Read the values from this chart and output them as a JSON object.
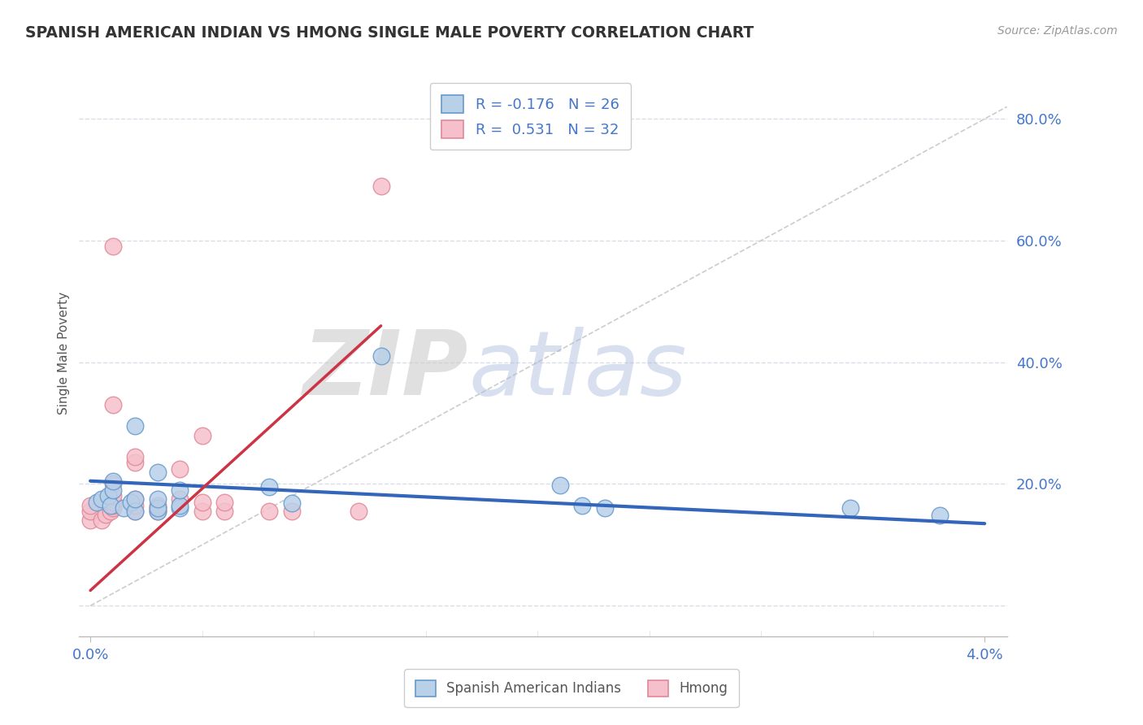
{
  "title": "SPANISH AMERICAN INDIAN VS HMONG SINGLE MALE POVERTY CORRELATION CHART",
  "source": "Source: ZipAtlas.com",
  "ylabel": "Single Male Poverty",
  "xlim": [
    -0.0005,
    0.041
  ],
  "ylim": [
    -0.05,
    0.88
  ],
  "xticks": [
    0.0,
    0.04
  ],
  "xticklabels": [
    "0.0%",
    "4.0%"
  ],
  "ytick_positions": [
    0.0,
    0.2,
    0.4,
    0.6,
    0.8
  ],
  "ytick_labels": [
    "",
    "20.0%",
    "40.0%",
    "60.0%",
    "80.0%"
  ],
  "blue_r": "-0.176",
  "blue_n": "26",
  "pink_r": "0.531",
  "pink_n": "32",
  "blue_color": "#b8d0e8",
  "blue_edge": "#6699cc",
  "pink_color": "#f5c0cc",
  "pink_edge": "#e08898",
  "blue_line_color": "#3366bb",
  "pink_line_color": "#cc3344",
  "ref_line_color": "#cccccc",
  "grid_color": "#d8dde8",
  "background_color": "#ffffff",
  "watermark_zip": "ZIP",
  "watermark_atlas": "atlas",
  "blue_x": [
    0.0003,
    0.0005,
    0.0008,
    0.0009,
    0.001,
    0.001,
    0.0015,
    0.0018,
    0.002,
    0.002,
    0.002,
    0.003,
    0.003,
    0.003,
    0.003,
    0.004,
    0.004,
    0.004,
    0.008,
    0.009,
    0.013,
    0.021,
    0.022,
    0.023,
    0.034,
    0.038
  ],
  "blue_y": [
    0.17,
    0.175,
    0.18,
    0.165,
    0.19,
    0.205,
    0.16,
    0.17,
    0.155,
    0.175,
    0.295,
    0.155,
    0.16,
    0.175,
    0.22,
    0.16,
    0.165,
    0.19,
    0.195,
    0.168,
    0.41,
    0.198,
    0.165,
    0.16,
    0.16,
    0.148
  ],
  "pink_x": [
    0.0,
    0.0,
    0.0,
    0.0005,
    0.0007,
    0.0009,
    0.001,
    0.001,
    0.001,
    0.001,
    0.001,
    0.001,
    0.001,
    0.002,
    0.002,
    0.002,
    0.002,
    0.002,
    0.003,
    0.003,
    0.003,
    0.004,
    0.004,
    0.005,
    0.005,
    0.005,
    0.006,
    0.006,
    0.008,
    0.009,
    0.012,
    0.013
  ],
  "pink_y": [
    0.14,
    0.155,
    0.165,
    0.14,
    0.15,
    0.155,
    0.16,
    0.165,
    0.17,
    0.18,
    0.2,
    0.33,
    0.59,
    0.155,
    0.165,
    0.175,
    0.235,
    0.245,
    0.155,
    0.16,
    0.165,
    0.175,
    0.225,
    0.155,
    0.17,
    0.28,
    0.155,
    0.17,
    0.155,
    0.155,
    0.155,
    0.69
  ],
  "blue_trend_x": [
    0.0,
    0.04
  ],
  "blue_trend_y": [
    0.205,
    0.135
  ],
  "pink_trend_x": [
    0.0,
    0.013
  ],
  "pink_trend_y": [
    0.025,
    0.46
  ]
}
